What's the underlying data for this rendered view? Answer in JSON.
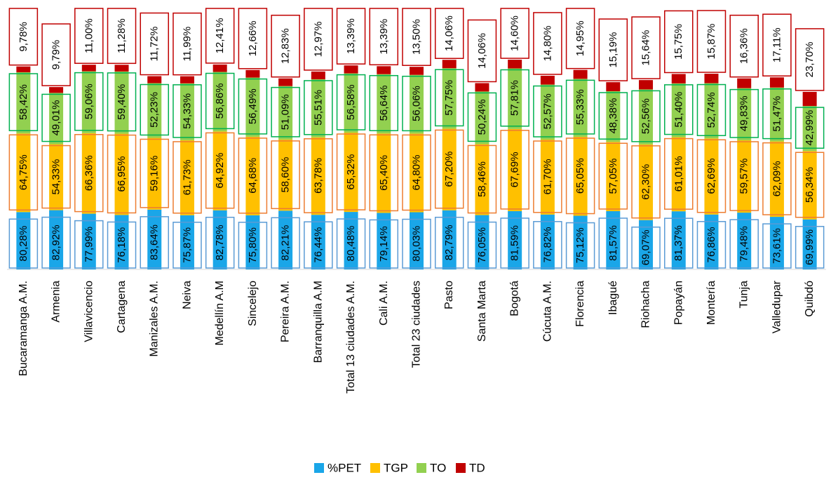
{
  "chart_data": {
    "type": "bar",
    "stacked": true,
    "categories": [
      "Bucaramanga A.M.",
      "Armenia",
      "Villavicencio",
      "Cartagena",
      "Manizales A.M.",
      "Neiva",
      "Medellín A.M",
      "Sincelejo",
      "Pereira A.M.",
      "Barranquilla A.M",
      "Total 13 ciudades A.M.",
      "Cali A.M.",
      "Total 23 ciudades",
      "Pasto",
      "Santa Marta",
      "Bogotá",
      "Cúcuta A.M.",
      "Florencia",
      "Ibagué",
      "Riohacha",
      "Popayán",
      "Montería",
      "Tunja",
      "Valledupar",
      "Quibdó"
    ],
    "series": [
      {
        "name": "%PET",
        "color": "#1aa6e8",
        "border": "#5b9bd5",
        "values": [
          80.28,
          82.92,
          77.99,
          76.18,
          83.64,
          75.87,
          82.78,
          75.8,
          82.21,
          76.44,
          80.48,
          79.14,
          80.03,
          82.79,
          76.05,
          81.59,
          76.82,
          75.12,
          81.57,
          69.07,
          81.37,
          76.86,
          79.48,
          73.61,
          69.99
        ],
        "labels": [
          "80,28%",
          "82,92%",
          "77,99%",
          "76,18%",
          "83,64%",
          "75,87%",
          "82,78%",
          "75,80%",
          "82,21%",
          "76,44%",
          "80,48%",
          "79,14%",
          "80,03%",
          "82,79%",
          "76,05%",
          "81,59%",
          "76,82%",
          "75,12%",
          "81,57%",
          "69,07%",
          "81,37%",
          "76,86%",
          "79,48%",
          "73,61%",
          "69,99%"
        ]
      },
      {
        "name": "TGP",
        "color": "#ffc000",
        "border": "#ed7d31",
        "values": [
          64.75,
          54.33,
          66.36,
          66.95,
          59.16,
          61.73,
          64.92,
          64.68,
          58.6,
          63.78,
          65.32,
          65.4,
          64.8,
          67.2,
          58.46,
          67.69,
          61.7,
          65.05,
          57.05,
          62.3,
          61.01,
          62.69,
          59.57,
          62.09,
          56.34
        ],
        "labels": [
          "64,75%",
          "54,33%",
          "66,36%",
          "66,95%",
          "59,16%",
          "61,73%",
          "64,92%",
          "64,68%",
          "58,60%",
          "63,78%",
          "65,32%",
          "65,40%",
          "64,80%",
          "67,20%",
          "58,46%",
          "67,69%",
          "61,70%",
          "65,05%",
          "57,05%",
          "62,30%",
          "61,01%",
          "62,69%",
          "59,57%",
          "62,09%",
          "56,34%"
        ]
      },
      {
        "name": "TO",
        "color": "#92d050",
        "border": "#00b050",
        "values": [
          58.42,
          49.01,
          59.06,
          59.4,
          52.23,
          54.33,
          56.86,
          56.49,
          51.09,
          55.51,
          56.58,
          56.64,
          56.06,
          57.75,
          50.24,
          57.81,
          52.57,
          55.33,
          48.38,
          52.56,
          51.4,
          52.74,
          49.83,
          51.47,
          42.99
        ],
        "labels": [
          "58,42%",
          "49,01%",
          "59,06%",
          "59,40%",
          "52,23%",
          "54,33%",
          "56,86%",
          "56,49%",
          "51,09%",
          "55,51%",
          "56,58%",
          "56,64%",
          "56,06%",
          "57,75%",
          "50,24%",
          "57,81%",
          "52,57%",
          "55,33%",
          "48,38%",
          "52,56%",
          "51,40%",
          "52,74%",
          "49,83%",
          "51,47%",
          "42,99%"
        ]
      },
      {
        "name": "TD",
        "color": "#c00000",
        "border": "#c00000",
        "values": [
          9.78,
          9.79,
          11.0,
          11.28,
          11.72,
          11.99,
          12.41,
          12.66,
          12.83,
          12.97,
          13.39,
          13.39,
          13.5,
          14.06,
          14.06,
          14.6,
          14.8,
          14.95,
          15.19,
          15.64,
          15.75,
          15.87,
          16.36,
          17.11,
          23.7
        ],
        "labels": [
          "9,78%",
          "9,79%",
          "11,00%",
          "11,28%",
          "11,72%",
          "11,99%",
          "12,41%",
          "12,66%",
          "12,83%",
          "12,97%",
          "13,39%",
          "13,39%",
          "13,50%",
          "14,06%",
          "14,06%",
          "14,60%",
          "14,80%",
          "14,95%",
          "15,19%",
          "15,64%",
          "15,75%",
          "15,87%",
          "16,36%",
          "17,11%",
          "23,70%"
        ]
      }
    ],
    "title": "",
    "xlabel": "",
    "ylabel": "",
    "grid": false,
    "legend_position": "bottom"
  }
}
